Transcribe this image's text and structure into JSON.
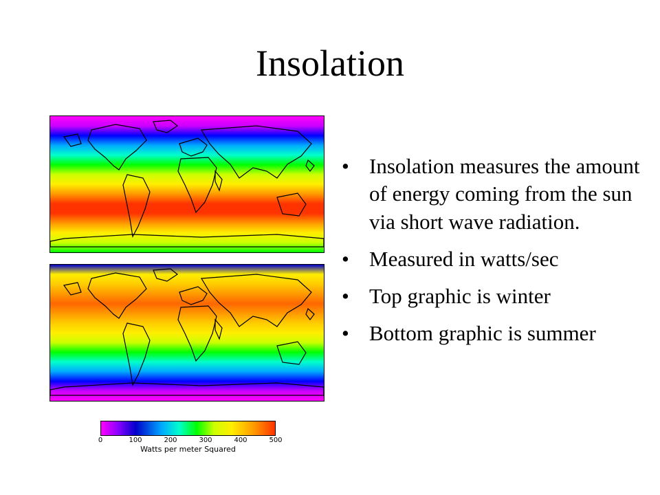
{
  "slide": {
    "title": "Insolation",
    "bullets": [
      "Insolation measures the amount of energy coming from the sun via short wave radiation.",
      "Measured in watts/sec",
      "Top graphic is winter",
      "Bottom graphic is summer"
    ],
    "bullet_marker": "•"
  },
  "figures": {
    "top_map": {
      "season": "winter",
      "bands": [
        "#ff00ff",
        "#cc00ff",
        "#0000ff",
        "#00aaff",
        "#00ffcc",
        "#00ff00",
        "#ccff00",
        "#ffee00",
        "#ff9900",
        "#ff3300",
        "#ff3300",
        "#ff9900",
        "#ffee00",
        "#ccff00",
        "#00ff00"
      ]
    },
    "bottom_map": {
      "season": "summer",
      "bands": [
        "#0000cc",
        "#ffee00",
        "#ffcc00",
        "#ff9900",
        "#ff6600",
        "#ff9900",
        "#ffcc00",
        "#ffee00",
        "#ccff00",
        "#00ff00",
        "#00ffcc",
        "#00aaff",
        "#0000ff",
        "#cc00ff",
        "#ff00ff"
      ]
    }
  },
  "legend": {
    "ticks": [
      "0",
      "100",
      "200",
      "300",
      "400",
      "500"
    ],
    "min": 0,
    "max": 500,
    "label": "Watts per meter Squared"
  }
}
